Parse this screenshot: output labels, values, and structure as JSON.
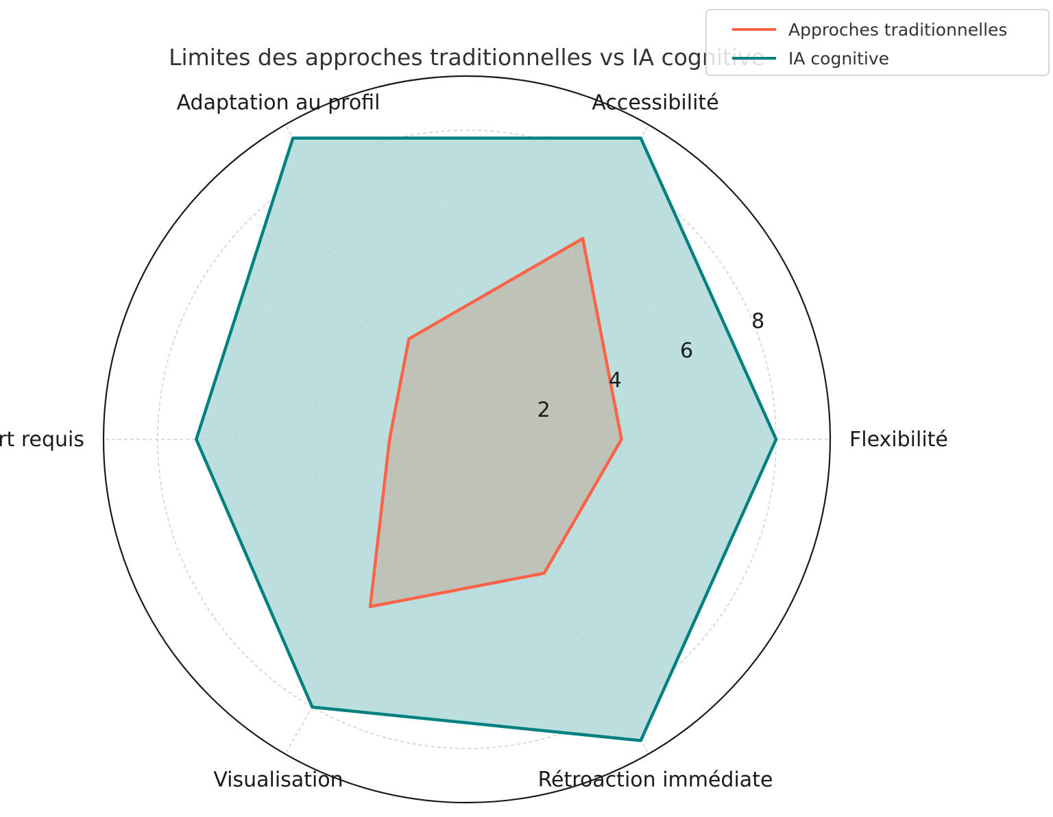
{
  "chart_data": {
    "type": "radar",
    "title": "Limites des approches traditionnelles vs IA cognitive",
    "categories": [
      "Flexibilité",
      "Accessibilité",
      "Adaptation au profil",
      "Effort requis",
      "Visualisation",
      "Rétroaction immédiate"
    ],
    "series": [
      {
        "name": "Approches traditionnelles",
        "values": [
          4,
          6,
          3,
          2,
          5,
          4
        ],
        "color": "#ff6347",
        "fill": "#c0b8a8"
      },
      {
        "name": "IA cognitive",
        "values": [
          8,
          9,
          9,
          7,
          8,
          9
        ],
        "color": "#008080",
        "fill": "#b2d8d8"
      }
    ],
    "rlim": [
      0,
      9.4
    ],
    "rticks": [
      2,
      4,
      6,
      8
    ],
    "rtick_labels": [
      "2",
      "4",
      "6",
      "8"
    ],
    "grid": true,
    "legend_position": "top-right"
  }
}
